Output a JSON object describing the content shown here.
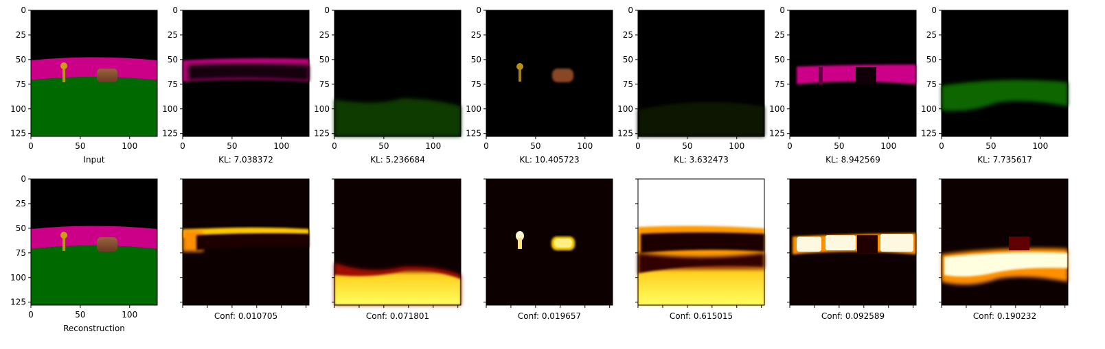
{
  "figure": {
    "background": "#ffffff"
  },
  "chart_data": {
    "type": "heatmap",
    "grid": "2x7",
    "axis_range": [
      0,
      128
    ],
    "ticks": [
      0,
      25,
      50,
      75,
      100,
      125
    ],
    "tick_labels": [
      "0",
      "25",
      "50",
      "75",
      "100",
      "125"
    ],
    "x_ticks": [
      0,
      50,
      100
    ],
    "x_tick_labels": [
      "0",
      "50",
      "100"
    ],
    "grid_lines": false,
    "colormap_bottom": "hot",
    "top_row_captions": [
      "Input",
      "KL: 7.038372",
      "KL: 5.236684",
      "KL: 10.405723",
      "KL: 3.632473",
      "KL: 8.942569",
      "KL: 7.735617"
    ],
    "bottom_row_captions": [
      "Reconstruction",
      "Conf: 0.010705",
      "Conf: 0.071801",
      "Conf: 0.019657",
      "Conf: 0.615015",
      "Conf: 0.092589",
      "Conf: 0.190232"
    ],
    "colors": {
      "background": "#000000",
      "wall": "#cc0088",
      "floor": "#006a00",
      "key": "#b8960a",
      "box": "#8a5232"
    }
  }
}
